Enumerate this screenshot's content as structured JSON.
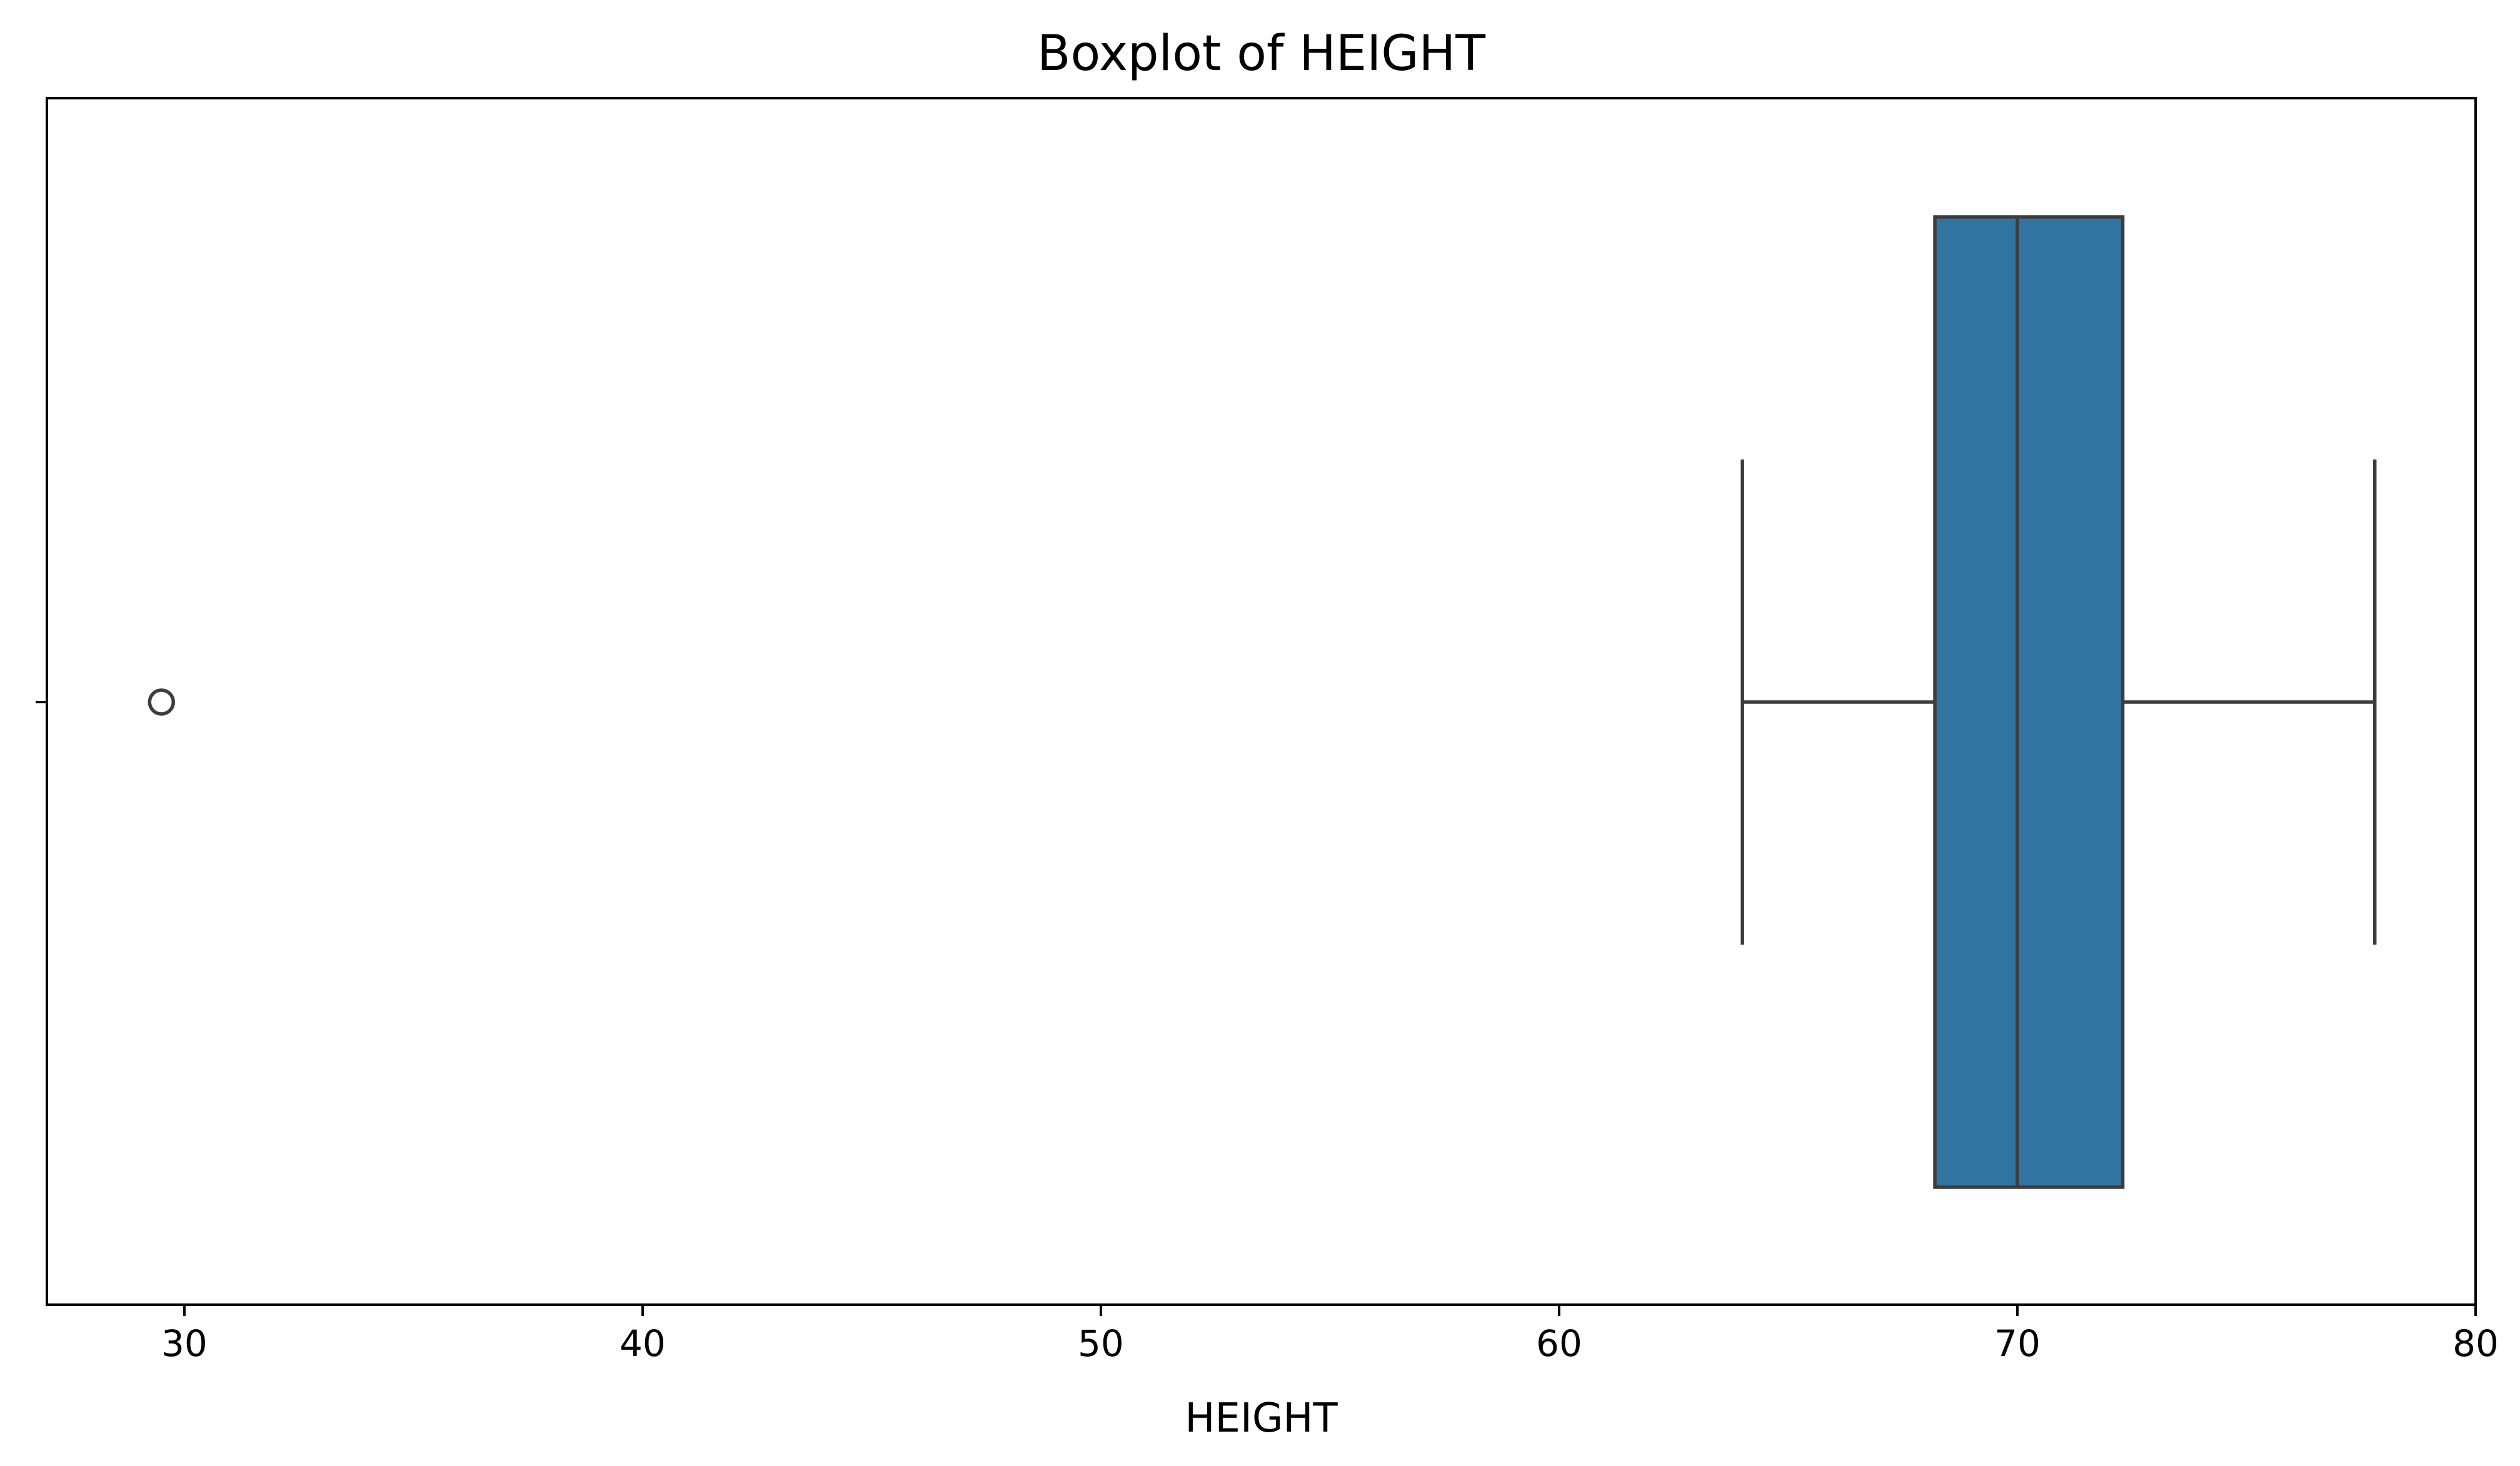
{
  "chart_data": {
    "type": "boxplot",
    "title": "Boxplot of HEIGHT",
    "xlabel": "HEIGHT",
    "ylabel": "",
    "orientation": "horizontal",
    "xlim": [
      27,
      80
    ],
    "xticks": [
      30,
      40,
      50,
      60,
      70,
      80
    ],
    "xtick_labels": [
      "30",
      "40",
      "50",
      "60",
      "70",
      "80"
    ],
    "grid": false,
    "legend": false,
    "box_color": "#3274a1",
    "line_color": "#3d3d3d",
    "series": [
      {
        "whisker_low": 64.0,
        "q1": 68.2,
        "median": 70.0,
        "q3": 72.3,
        "whisker_high": 77.8,
        "outliers": [
          29.5
        ]
      }
    ]
  }
}
